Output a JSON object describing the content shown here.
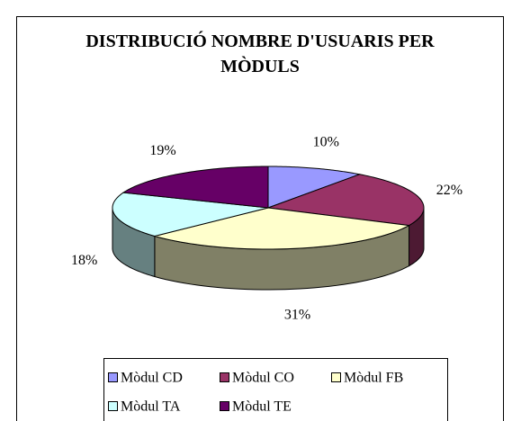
{
  "chart_data": {
    "type": "pie",
    "title": "DISTRIBUCIÓ NOMBRE D'USUARIS PER MÒDULS",
    "categories": [
      "Mòdul CD",
      "Mòdul CO",
      "Mòdul FB",
      "Mòdul TA",
      "Mòdul TE"
    ],
    "values": [
      10,
      22,
      31,
      18,
      19
    ],
    "value_labels": [
      "10%",
      "22%",
      "31%",
      "18%",
      "19%"
    ],
    "colors": [
      "#9999ff",
      "#993366",
      "#ffffcc",
      "#ccffff",
      "#660066"
    ],
    "legend": "bottom"
  }
}
